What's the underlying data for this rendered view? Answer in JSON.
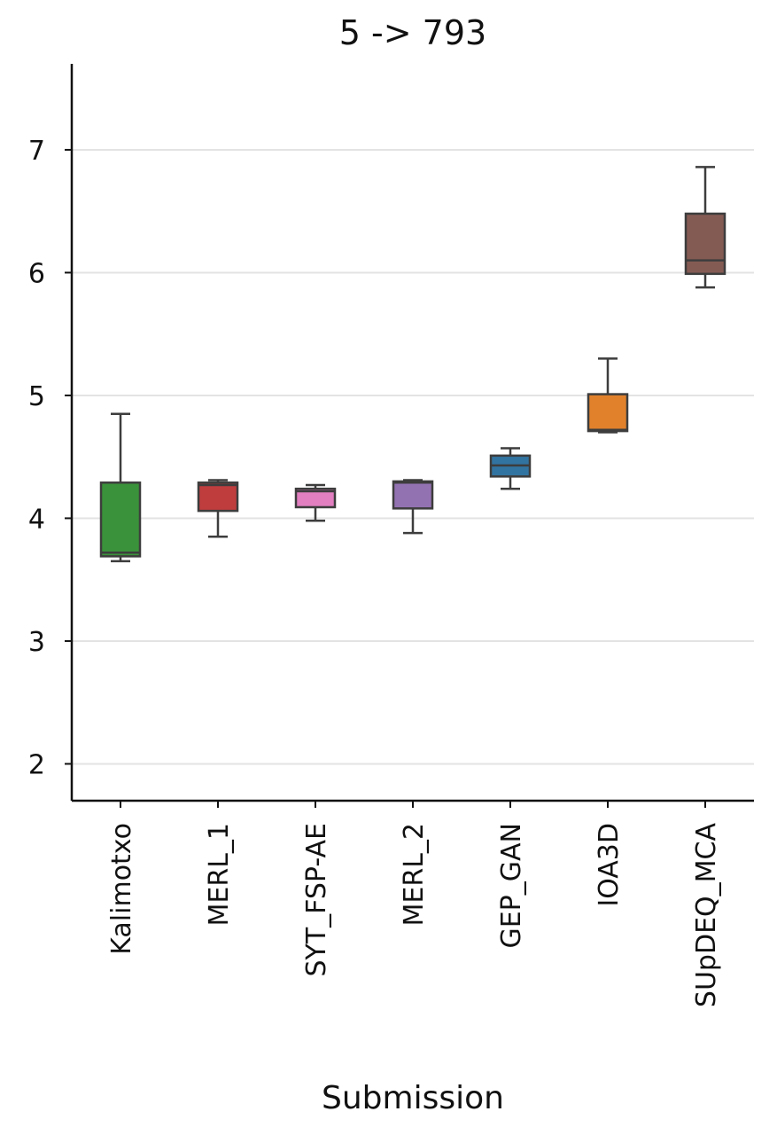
{
  "chart_data": {
    "type": "box",
    "title": "5 -> 793",
    "xlabel": "Submission",
    "ylabel": "",
    "ylim": [
      1.7,
      7.7
    ],
    "yticks": [
      2,
      3,
      4,
      5,
      6,
      7
    ],
    "grid": "horizontal",
    "categories": [
      "Kalimotxo",
      "MERL_1",
      "SYT_FSP-AE",
      "MERL_2",
      "GEP_GAN",
      "IOA3D",
      "SUpDEQ_MCA"
    ],
    "boxes": [
      {
        "name": "Kalimotxo",
        "min": 3.65,
        "q1": 3.69,
        "median": 3.72,
        "q3": 4.29,
        "max": 4.85,
        "color": "#3a923a"
      },
      {
        "name": "MERL_1",
        "min": 3.85,
        "q1": 4.06,
        "median": 4.27,
        "q3": 4.29,
        "max": 4.31,
        "color": "#c03d3e"
      },
      {
        "name": "SYT_FSP-AE",
        "min": 3.98,
        "q1": 4.09,
        "median": 4.22,
        "q3": 4.24,
        "max": 4.27,
        "color": "#e17fc0"
      },
      {
        "name": "MERL_2",
        "min": 3.88,
        "q1": 4.08,
        "median": 4.29,
        "q3": 4.3,
        "max": 4.31,
        "color": "#9372b2"
      },
      {
        "name": "GEP_GAN",
        "min": 4.24,
        "q1": 4.34,
        "median": 4.43,
        "q3": 4.51,
        "max": 4.57,
        "color": "#3274a1"
      },
      {
        "name": "IOA3D",
        "min": 4.7,
        "q1": 4.71,
        "median": 4.72,
        "q3": 5.01,
        "max": 5.3,
        "color": "#e1812c"
      },
      {
        "name": "SUpDEQ_MCA",
        "min": 5.88,
        "q1": 5.99,
        "median": 6.1,
        "q3": 6.48,
        "max": 6.86,
        "color": "#845b53"
      }
    ]
  }
}
